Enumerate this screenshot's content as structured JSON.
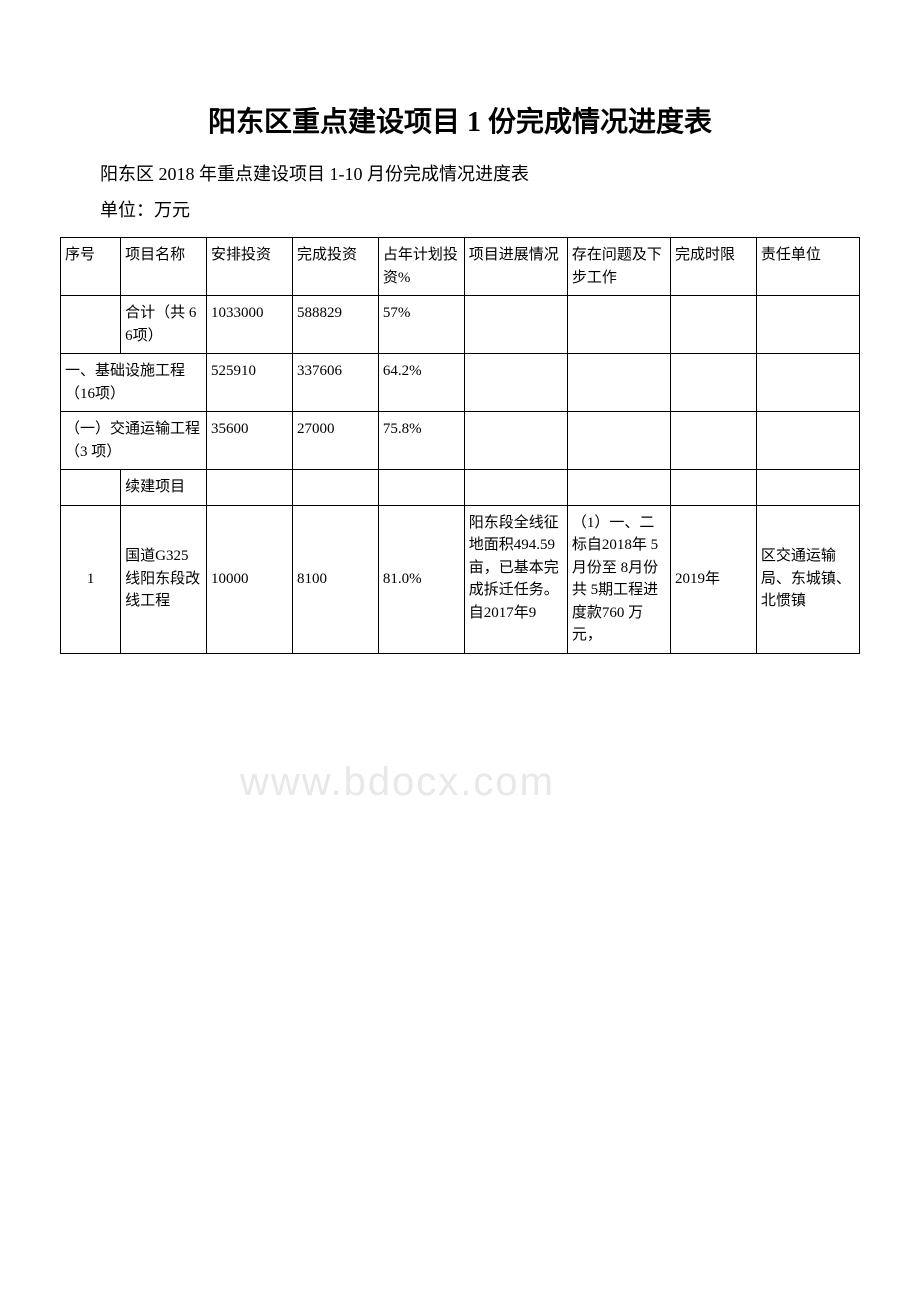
{
  "title": "阳东区重点建设项目 1 份完成情况进度表",
  "subtitle": "阳东区 2018 年重点建设项目 1-10 月份完成情况进度表",
  "unit_label": "单位：万元",
  "watermark": "www.bdocx.com",
  "headers": {
    "seq": "序号",
    "name": "项目名称",
    "invest": "安排投资",
    "complete": "完成投资",
    "percent": "占年计划投资%",
    "progress": "项目进展情况",
    "issue": "存在问题及下步工作",
    "deadline": "完成时限",
    "dept": "责任单位"
  },
  "rows": {
    "total": {
      "name": "合计（共 66项）",
      "invest": "1033000",
      "complete": "588829",
      "percent": "57%"
    },
    "section1": {
      "name": "一、基础设施工程（16项）",
      "invest": "525910",
      "complete": "337606",
      "percent": "64.2%"
    },
    "section1_1": {
      "name": "（一）交通运输工程（3 项）",
      "invest": "35600",
      "complete": "27000",
      "percent": "75.8%"
    },
    "continue": {
      "name": "续建项目"
    },
    "row1": {
      "seq": "1",
      "name": "国道G325线阳东段改线工程",
      "invest": "10000",
      "complete": "8100",
      "percent": "81.0%",
      "progress": "阳东段全线征地面积494.59亩，已基本完成拆迁任务。自2017年9",
      "issue": "（1）一、二标自2018年 5月份至 8月份共 5期工程进度款760 万元，",
      "deadline": "2019年",
      "dept": "区交通运输局、东城镇、北惯镇"
    }
  },
  "colors": {
    "text": "#000000",
    "background": "#ffffff",
    "border": "#000000",
    "watermark": "#e8e8e8"
  }
}
